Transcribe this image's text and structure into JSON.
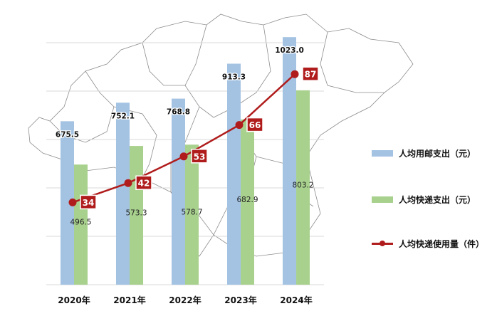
{
  "chart_data": {
    "type": "bar",
    "categories": [
      "2020年",
      "2021年",
      "2022年",
      "2023年",
      "2024年"
    ],
    "ylim": [
      0,
      1000
    ],
    "ylim_right": [
      0,
      100
    ],
    "grid": true,
    "legend_position": "right",
    "series": [
      {
        "name": "人均用邮支出（元）",
        "type": "bar",
        "color": "#a4c3e3",
        "values": [
          675.5,
          752.1,
          768.8,
          913.3,
          1023.0
        ],
        "labels": [
          "675.5",
          "752.1",
          "768.8",
          "913.3",
          "1023.0"
        ]
      },
      {
        "name": "人均快递支出（元）",
        "type": "bar",
        "color": "#a9d18e",
        "values": [
          496.5,
          573.3,
          578.7,
          682.9,
          803.2
        ],
        "labels": [
          "496.5",
          "573.3",
          "578.7",
          "682.9",
          "803.2"
        ]
      },
      {
        "name": "人均快递使用量（件）",
        "type": "line",
        "axis": "right",
        "color": "#b01c1c",
        "values": [
          34,
          42,
          53,
          66,
          87
        ],
        "labels": [
          "34",
          "42",
          "53",
          "66",
          "87"
        ]
      }
    ]
  }
}
